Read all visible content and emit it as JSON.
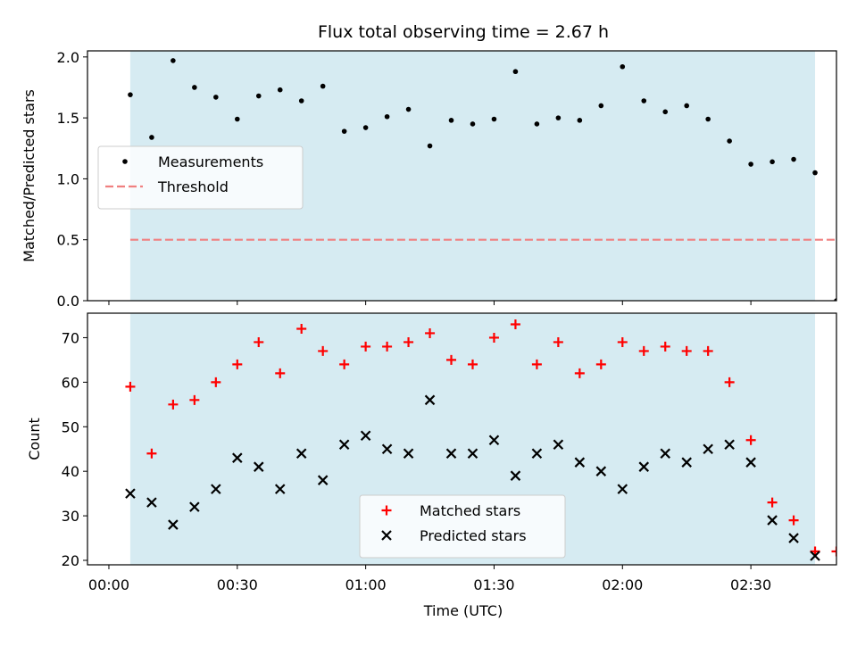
{
  "figure": {
    "title": "Flux total observing time = 2.67 h",
    "xlabel": "Time (UTC)",
    "xticks": [
      "00:00",
      "00:30",
      "01:00",
      "01:30",
      "02:00",
      "02:30"
    ]
  },
  "colors": {
    "shade": "#add8e6",
    "measurement": "#000000",
    "threshold": "#f08080",
    "matched": "#ff0000",
    "predicted": "#000000"
  },
  "chart_data": [
    {
      "type": "scatter",
      "ylabel": "Matched/Predicted stars",
      "ylim": [
        0,
        2.05
      ],
      "xlim": [
        "-00:05",
        "02:50"
      ],
      "yticks": [
        "0.0",
        "0.5",
        "1.0",
        "1.5",
        "2.0"
      ],
      "shaded_span": [
        "00:05",
        "02:45"
      ],
      "legend_position": "center-left",
      "series": [
        {
          "name": "Measurements",
          "marker": "dot",
          "x": [
            "00:05",
            "00:10",
            "00:15",
            "00:20",
            "00:25",
            "00:30",
            "00:35",
            "00:40",
            "00:45",
            "00:50",
            "00:55",
            "01:00",
            "01:05",
            "01:10",
            "01:15",
            "01:20",
            "01:25",
            "01:30",
            "01:35",
            "01:40",
            "01:45",
            "01:50",
            "01:55",
            "02:00",
            "02:05",
            "02:10",
            "02:15",
            "02:20",
            "02:25",
            "02:30",
            "02:35",
            "02:40",
            "02:45",
            "02:50"
          ],
          "y": [
            1.69,
            1.34,
            1.97,
            1.75,
            1.67,
            1.49,
            1.68,
            1.73,
            1.64,
            1.76,
            1.39,
            1.42,
            1.51,
            1.57,
            1.27,
            1.48,
            1.45,
            1.49,
            1.88,
            1.45,
            1.5,
            1.48,
            1.6,
            1.92,
            1.64,
            1.55,
            1.6,
            1.49,
            1.31,
            1.12,
            1.14,
            1.16,
            1.05,
            0.0
          ]
        }
      ],
      "threshold": {
        "name": "Threshold",
        "y": 0.5,
        "x_range": [
          "00:05",
          "02:50"
        ]
      }
    },
    {
      "type": "scatter",
      "ylabel": "Count",
      "ylim": [
        19,
        75.5
      ],
      "xlim": [
        "-00:05",
        "02:50"
      ],
      "yticks": [
        "20",
        "30",
        "40",
        "50",
        "60",
        "70"
      ],
      "shaded_span": [
        "00:05",
        "02:45"
      ],
      "legend_position": "lower-center",
      "series": [
        {
          "name": "Matched stars",
          "marker": "plus",
          "x": [
            "00:05",
            "00:10",
            "00:15",
            "00:20",
            "00:25",
            "00:30",
            "00:35",
            "00:40",
            "00:45",
            "00:50",
            "00:55",
            "01:00",
            "01:05",
            "01:10",
            "01:15",
            "01:20",
            "01:25",
            "01:30",
            "01:35",
            "01:40",
            "01:45",
            "01:50",
            "01:55",
            "02:00",
            "02:05",
            "02:10",
            "02:15",
            "02:20",
            "02:25",
            "02:30",
            "02:35",
            "02:40",
            "02:45",
            "02:50"
          ],
          "y": [
            59,
            44,
            55,
            56,
            60,
            64,
            69,
            62,
            72,
            67,
            64,
            68,
            68,
            69,
            71,
            65,
            64,
            70,
            73,
            64,
            69,
            62,
            64,
            69,
            67,
            68,
            67,
            67,
            60,
            47,
            33,
            29,
            22,
            22
          ]
        },
        {
          "name": "Predicted stars",
          "marker": "x",
          "x": [
            "00:05",
            "00:10",
            "00:15",
            "00:20",
            "00:25",
            "00:30",
            "00:35",
            "00:40",
            "00:45",
            "00:50",
            "00:55",
            "01:00",
            "01:05",
            "01:10",
            "01:15",
            "01:20",
            "01:25",
            "01:30",
            "01:35",
            "01:40",
            "01:45",
            "01:50",
            "01:55",
            "02:00",
            "02:05",
            "02:10",
            "02:15",
            "02:20",
            "02:25",
            "02:30",
            "02:35",
            "02:40",
            "02:45"
          ],
          "y": [
            35,
            33,
            28,
            32,
            36,
            43,
            41,
            36,
            44,
            38,
            46,
            48,
            45,
            44,
            56,
            44,
            44,
            47,
            39,
            44,
            46,
            42,
            40,
            36,
            41,
            44,
            42,
            45,
            46,
            42,
            29,
            25,
            21
          ]
        }
      ]
    }
  ]
}
